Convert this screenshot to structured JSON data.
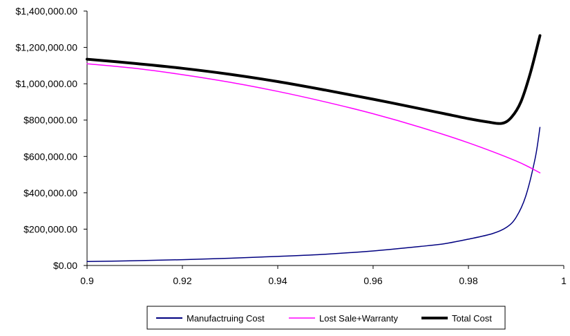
{
  "chart_data": {
    "type": "line",
    "title": "",
    "xlabel": "",
    "ylabel": "",
    "xlim": [
      0.9,
      1.0
    ],
    "ylim": [
      0,
      1400000
    ],
    "x_ticks": [
      "0.9",
      "0.92",
      "0.94",
      "0.96",
      "0.98",
      "1"
    ],
    "y_ticks": [
      "$0.00",
      "$200,000.00",
      "$400,000.00",
      "$600,000.00",
      "$800,000.00",
      "$1,000,000.00",
      "$1,200,000.00",
      "$1,400,000.00"
    ],
    "grid": false,
    "legend_position": "bottom",
    "series": [
      {
        "name": "Manufactruing Cost",
        "color": "#000080",
        "x": [
          0.9,
          0.91,
          0.92,
          0.93,
          0.94,
          0.95,
          0.96,
          0.97,
          0.975,
          0.98,
          0.985,
          0.988,
          0.99,
          0.992,
          0.994,
          0.995
        ],
        "values": [
          22000,
          26000,
          32000,
          40000,
          50000,
          62000,
          80000,
          105000,
          120000,
          145000,
          175000,
          210000,
          265000,
          380000,
          590000,
          760000
        ]
      },
      {
        "name": "Lost Sale+Warranty",
        "color": "#ff00ff",
        "x": [
          0.9,
          0.91,
          0.92,
          0.93,
          0.94,
          0.95,
          0.96,
          0.97,
          0.98,
          0.99,
          0.995
        ],
        "values": [
          1110000,
          1085000,
          1050000,
          1008000,
          958000,
          900000,
          835000,
          760000,
          675000,
          575000,
          510000
        ]
      },
      {
        "name": "Total Cost",
        "color": "#000000",
        "x": [
          0.9,
          0.91,
          0.92,
          0.93,
          0.94,
          0.95,
          0.96,
          0.97,
          0.975,
          0.98,
          0.984,
          0.987,
          0.989,
          0.991,
          0.993,
          0.995
        ],
        "values": [
          1135000,
          1112000,
          1085000,
          1052000,
          1012000,
          965000,
          915000,
          862000,
          835000,
          808000,
          790000,
          782000,
          815000,
          900000,
          1060000,
          1265000
        ]
      }
    ]
  }
}
